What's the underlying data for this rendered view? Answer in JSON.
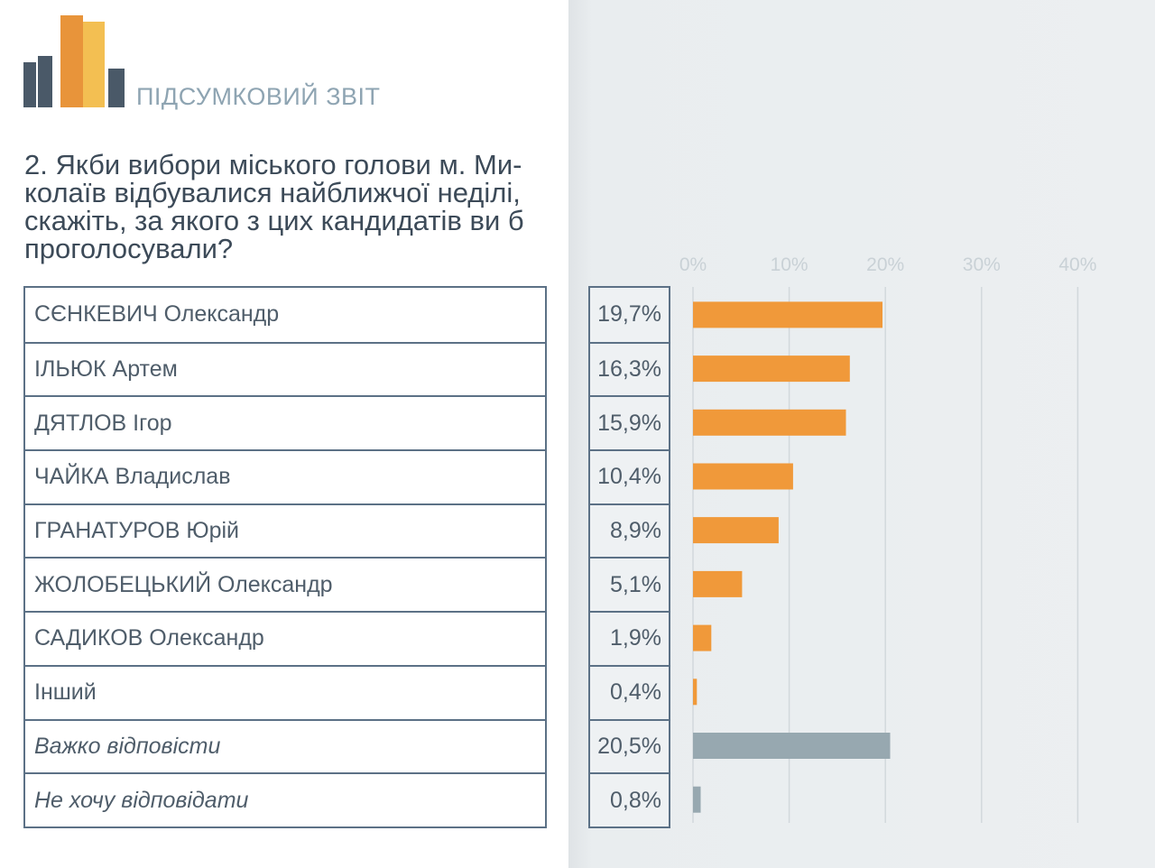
{
  "header": {
    "report_title": "ПІДСУМКОВИЙ ЗВІТ",
    "question": "2. Якби вибори міського голови м. Ми-колаїв відбувалися найближчої неділі, скажіть, за якого з цих кандидатів ви б проголосували?"
  },
  "colors": {
    "candidate_bar": "#f0993a",
    "other_bar": "#97a8b0",
    "grid": "#d2d8dc"
  },
  "chart_data": {
    "type": "bar",
    "orientation": "horizontal",
    "categories": [
      "СЄНКЕВИЧ Олександр",
      "ІЛЬЮК Артем",
      "ДЯТЛОВ Ігор",
      "ЧАЙКА Владислав",
      "ГРАНАТУРОВ Юрій",
      "ЖОЛОБЕЦЬКИЙ Олександр",
      "САДИКОВ Олександр",
      "Інший",
      "Важко відповісти",
      "Не хочу відповідати"
    ],
    "values": [
      19.7,
      16.3,
      15.9,
      10.4,
      8.9,
      5.1,
      1.9,
      0.4,
      20.5,
      0.8
    ],
    "value_labels": [
      "19,7%",
      "16,3%",
      "15,9%",
      "10,4%",
      "8,9%",
      "5,1%",
      "1,9%",
      "0,4%",
      "20,5%",
      "0,8%"
    ],
    "italic": [
      false,
      false,
      false,
      false,
      false,
      false,
      false,
      false,
      true,
      true
    ],
    "bar_group": [
      "candidate",
      "candidate",
      "candidate",
      "candidate",
      "candidate",
      "candidate",
      "candidate",
      "candidate",
      "other",
      "other"
    ],
    "xlim": [
      0,
      40
    ],
    "xticks": [
      0,
      10,
      20,
      30,
      40
    ],
    "xtick_labels": [
      "0%",
      "10%",
      "20%",
      "30%",
      "40%"
    ],
    "grid": true,
    "legend": "none"
  }
}
